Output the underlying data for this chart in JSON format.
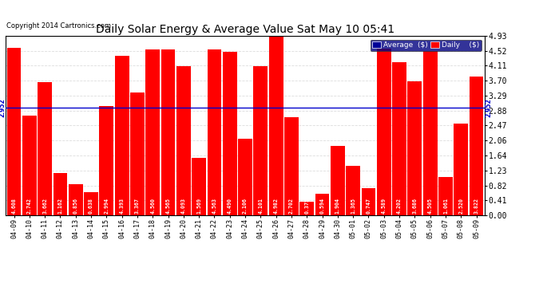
{
  "title": "Daily Solar Energy & Average Value Sat May 10 05:41",
  "copyright": "Copyright 2014 Cartronics.com",
  "categories": [
    "04-09",
    "04-10",
    "04-11",
    "04-12",
    "04-13",
    "04-14",
    "04-15",
    "04-16",
    "04-17",
    "04-18",
    "04-19",
    "04-20",
    "04-21",
    "04-22",
    "04-23",
    "04-24",
    "04-25",
    "04-26",
    "04-27",
    "04-28",
    "04-29",
    "04-30",
    "05-01",
    "05-02",
    "05-03",
    "05-04",
    "05-05",
    "05-06",
    "05-07",
    "05-08",
    "05-09"
  ],
  "values": [
    4.608,
    2.742,
    3.662,
    1.162,
    0.856,
    0.638,
    2.994,
    4.393,
    3.367,
    4.56,
    4.565,
    4.093,
    1.569,
    4.563,
    4.49,
    2.106,
    4.101,
    4.982,
    2.702,
    0.375,
    0.594,
    1.904,
    1.365,
    0.747,
    4.589,
    4.202,
    3.686,
    4.505,
    1.061,
    2.52,
    3.822
  ],
  "average": 2.952,
  "bar_color": "#ff0000",
  "average_line_color": "#0000cc",
  "background_color": "#ffffff",
  "plot_bg_color": "#ffffff",
  "grid_color": "#bbbbbb",
  "bar_text_color": "#ffffff",
  "ylim": [
    0.0,
    4.93
  ],
  "yticks": [
    0.0,
    0.41,
    0.82,
    1.23,
    1.64,
    2.06,
    2.47,
    2.88,
    3.29,
    3.7,
    4.11,
    4.52,
    4.93
  ],
  "legend_avg_color": "#000099",
  "legend_daily_color": "#ff0000",
  "avg_label": "Average  ($)",
  "daily_label": "Daily    ($)"
}
